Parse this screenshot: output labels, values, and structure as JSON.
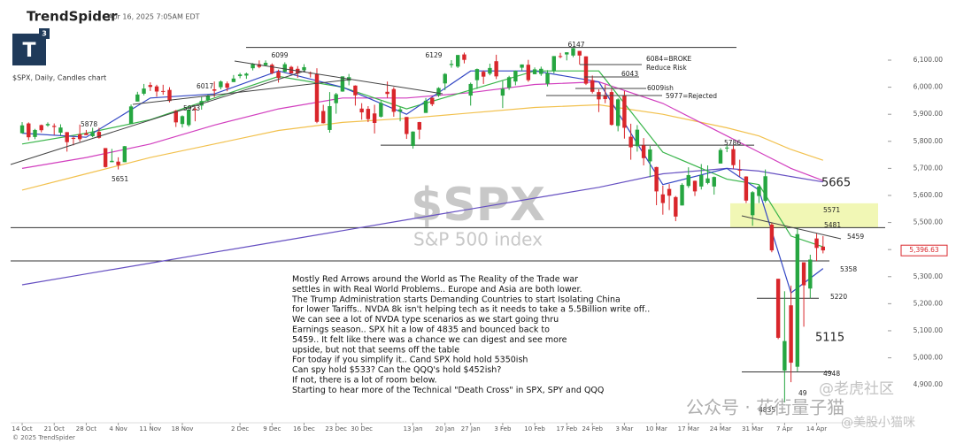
{
  "header": {
    "brand": "TrendSpider",
    "timestamp": "Apr 16, 2025 7:05AM EDT",
    "logo": "T",
    "logo_sup": "3",
    "symbol_line": "$SPX, Daily, Candles chart"
  },
  "footer": "© 2025 TrendSpider",
  "watermarks": [
    "$SPX",
    "S&P 500 index",
    "公众号 · 花街量子猫",
    "@老虎社区",
    "@美股小猫咪"
  ],
  "chart_data": {
    "type": "candlestick",
    "xlim": [
      -1.8,
      134.7
    ],
    "ylim": [
      4760,
      6283
    ],
    "xticks": [
      {
        "value": 0,
        "label": "14 Oct"
      },
      {
        "value": 5,
        "label": "21 Oct"
      },
      {
        "value": 10,
        "label": "28 Oct"
      },
      {
        "value": 15,
        "label": "4 Nov"
      },
      {
        "value": 20,
        "label": "11 Nov"
      },
      {
        "value": 25,
        "label": "18 Nov"
      },
      {
        "value": 34,
        "label": "2 Dec"
      },
      {
        "value": 39,
        "label": "9 Dec"
      },
      {
        "value": 44,
        "label": "16 Dec"
      },
      {
        "value": 49,
        "label": "23 Dec"
      },
      {
        "value": 53,
        "label": "30 Dec"
      },
      {
        "value": 61,
        "label": "13 Jan"
      },
      {
        "value": 66,
        "label": "20 Jan"
      },
      {
        "value": 70,
        "label": "27 Jan"
      },
      {
        "value": 75,
        "label": "3 Feb"
      },
      {
        "value": 80,
        "label": "10 Feb"
      },
      {
        "value": 85,
        "label": "17 Feb"
      },
      {
        "value": 89,
        "label": "24 Feb"
      },
      {
        "value": 94,
        "label": "3 Mar"
      },
      {
        "value": 99,
        "label": "10 Mar"
      },
      {
        "value": 104,
        "label": "17 Mar"
      },
      {
        "value": 109,
        "label": "24 Mar"
      },
      {
        "value": 114,
        "label": "31 Mar"
      },
      {
        "value": 119,
        "label": "7 Apr"
      },
      {
        "value": 124,
        "label": "14 Apr"
      }
    ],
    "yticks": [
      {
        "value": 4900,
        "label": "4,900.00"
      },
      {
        "value": 5000,
        "label": "5,000.00"
      },
      {
        "value": 5100,
        "label": "5,100.00"
      },
      {
        "value": 5200,
        "label": "5,200.00"
      },
      {
        "value": 5300,
        "label": "5,300.00"
      },
      {
        "value": 5400,
        "label": "5,400.00"
      },
      {
        "value": 5500,
        "label": "5,500.00"
      },
      {
        "value": 5600,
        "label": "5,600.00"
      },
      {
        "value": 5700,
        "label": "5,700.00"
      },
      {
        "value": 5800,
        "label": "5,800.00"
      },
      {
        "value": 5900,
        "label": "5,900.00"
      },
      {
        "value": 6000,
        "label": "6,000.00"
      },
      {
        "value": 6100,
        "label": "6,100.00"
      }
    ],
    "up_color": "#26a641",
    "down_color": "#d9262b",
    "candles": {
      "open": [
        5830,
        5866,
        5816,
        5860,
        5859,
        5857,
        5832,
        5834,
        5813,
        5826,
        5830,
        5819,
        5835,
        5775,
        5723,
        5725,
        5723,
        5864,
        5947,
        5976,
        6008,
        6003,
        5986,
        5990,
        5913,
        5864,
        5860,
        5920,
        5932,
        5952,
        5992,
        6000,
        6014,
        6019,
        6041,
        6043,
        6070,
        6085,
        6081,
        6083,
        6057,
        6057,
        6075,
        6068,
        6063,
        6053,
        6048,
        5912,
        5842,
        5941,
        5984,
        6024,
        6006,
        5921,
        5920,
        5903,
        5891,
        5983,
        5993,
        5910,
        5890,
        5783,
        5871,
        5905,
        5961,
        5969,
        6014,
        6082,
        6076,
        6121,
        5969,
        6026,
        6057,
        6050,
        6096,
        5969,
        5998,
        6021,
        6072,
        6083,
        6048,
        6049,
        6013,
        6060,
        6115,
        6121,
        6117,
        6134,
        6114,
        6026,
        5982,
        5970,
        5982,
        5857,
        5968,
        5817,
        5782,
        5785,
        5726,
        5705,
        5604,
        5624,
        5594,
        5563,
        5635,
        5654,
        5633,
        5646,
        5633,
        5718,
        5776,
        5771,
        5695,
        5670,
        5527,
        5598,
        5580,
        5492,
        5292,
        4953,
        5194,
        4967,
        5353,
        5256,
        5441,
        5411
      ],
      "high": [
        5871,
        5870,
        5846,
        5862,
        5870,
        5866,
        5863,
        5834,
        5817,
        5862,
        5842,
        5850,
        5850,
        5775,
        5772,
        5741,
        5783,
        5936,
        5983,
        6012,
        6018,
        6009,
        6009,
        6000,
        5916,
        5896,
        5920,
        5926,
        5964,
        5973,
        6021,
        6025,
        6021,
        6045,
        6053,
        6054,
        6089,
        6099,
        6099,
        6088,
        6065,
        6092,
        6079,
        6078,
        6085,
        6058,
        6070,
        5935,
        5982,
        5979,
        6040,
        6049,
        6007,
        5941,
        5930,
        5935,
        5949,
        6021,
        6000,
        5927,
        5890,
        5837,
        5872,
        5960,
        5962,
        6000,
        6052,
        6100,
        6119,
        6128,
        6017,
        6069,
        6062,
        6087,
        6120,
        6023,
        6042,
        6062,
        6084,
        6101,
        6073,
        6076,
        6063,
        6115,
        6127,
        6129,
        6145,
        6134,
        6114,
        6043,
        5992,
        6009,
        5994,
        5959,
        5986,
        5865,
        5860,
        5812,
        5783,
        5706,
        5636,
        5642,
        5598,
        5645,
        5704,
        5655,
        5716,
        5711,
        5670,
        5775,
        5786,
        5784,
        5732,
        5671,
        5616,
        5639,
        5696,
        5500,
        5292,
        5246,
        5267,
        5481,
        5353,
        5381,
        5459,
        5450
      ],
      "low": [
        5829,
        5804,
        5808,
        5833,
        5854,
        5824,
        5821,
        5762,
        5785,
        5799,
        5823,
        5815,
        5810,
        5703,
        5723,
        5696,
        5723,
        5864,
        5947,
        5970,
        5986,
        5965,
        5972,
        5944,
        5853,
        5851,
        5854,
        5874,
        5917,
        5944,
        5963,
        5992,
        5985,
        6019,
        6033,
        6031,
        6062,
        6070,
        6079,
        6048,
        6017,
        6055,
        6051,
        6035,
        6059,
        6036,
        5867,
        5866,
        5832,
        5902,
        5983,
        6007,
        5932,
        5880,
        5871,
        5829,
        5888,
        5960,
        5891,
        5874,
        5809,
        5773,
        5808,
        5905,
        5930,
        5964,
        5989,
        6072,
        6071,
        6088,
        5932,
        5994,
        6012,
        6044,
        6030,
        5923,
        5990,
        6007,
        6060,
        6020,
        6048,
        6042,
        6003,
        6051,
        6107,
        6099,
        6111,
        6084,
        6008,
        5977,
        5908,
        5941,
        5858,
        5837,
        5810,
        5732,
        5762,
        5711,
        5667,
        5564,
        5529,
        5546,
        5505,
        5563,
        5628,
        5598,
        5622,
        5641,
        5603,
        5718,
        5760,
        5699,
        5670,
        5572,
        5488,
        5572,
        5573,
        5390,
        5069,
        4835,
        4910,
        4950,
        5115,
        5220,
        5358,
        5386
      ],
      "close": [
        5859,
        5815,
        5842,
        5841,
        5864,
        5853,
        5851,
        5797,
        5809,
        5808,
        5823,
        5832,
        5813,
        5705,
        5728,
        5712,
        5782,
        5929,
        5973,
        5995,
        6001,
        5984,
        5985,
        5949,
        5870,
        5893,
        5917,
        5917,
        5949,
        5969,
        5987,
        6021,
        5998,
        6032,
        6047,
        6050,
        6086,
        6075,
        6090,
        6052,
        6034,
        6085,
        6051,
        6051,
        6074,
        6050,
        5872,
        5867,
        5930,
        5974,
        6040,
        6037,
        5970,
        5907,
        5882,
        5868,
        5942,
        5975,
        5909,
        5918,
        5827,
        5836,
        5843,
        5950,
        5937,
        5997,
        6049,
        6086,
        6119,
        6101,
        6012,
        6067,
        6039,
        6071,
        6040,
        5994,
        6037,
        6061,
        6084,
        6026,
        6066,
        6068,
        6052,
        6115,
        6114,
        6129,
        6144,
        6117,
        6013,
        5983,
        5955,
        5956,
        5861,
        5955,
        5850,
        5778,
        5843,
        5738,
        5770,
        5615,
        5572,
        5599,
        5522,
        5639,
        5675,
        5615,
        5675,
        5663,
        5668,
        5768,
        5777,
        5712,
        5693,
        5581,
        5612,
        5633,
        5671,
        5397,
        5074,
        5062,
        4982,
        5457,
        5268,
        5363,
        5406,
        5397
      ]
    },
    "moving_averages": [
      {
        "color": "#f2c14e",
        "x": [
          0,
          10,
          20,
          30,
          40,
          50,
          60,
          70,
          80,
          90,
          100,
          110,
          115,
          120,
          125
        ],
        "values": [
          5620,
          5680,
          5740,
          5790,
          5840,
          5870,
          5885,
          5905,
          5925,
          5935,
          5900,
          5850,
          5820,
          5770,
          5730
        ]
      },
      {
        "color": "#d23fbf",
        "x": [
          0,
          10,
          20,
          30,
          40,
          50,
          60,
          70,
          80,
          90,
          100,
          110,
          115,
          120,
          125
        ],
        "values": [
          5700,
          5740,
          5790,
          5860,
          5920,
          5960,
          5960,
          5980,
          6010,
          6020,
          5940,
          5820,
          5760,
          5700,
          5655
        ]
      },
      {
        "color": "#6650c2",
        "x": [
          0,
          10,
          20,
          30,
          40,
          50,
          60,
          70,
          80,
          90,
          100,
          110,
          115,
          120,
          125
        ],
        "values": [
          5270,
          5310,
          5350,
          5390,
          5430,
          5470,
          5510,
          5550,
          5590,
          5630,
          5680,
          5700,
          5690,
          5670,
          5650
        ]
      },
      {
        "color": "#39b54a",
        "x": [
          0,
          10,
          20,
          30,
          40,
          50,
          60,
          70,
          80,
          90,
          100,
          110,
          115,
          120,
          125
        ],
        "values": [
          5790,
          5830,
          5880,
          5960,
          6040,
          6000,
          5920,
          5990,
          6060,
          6060,
          5760,
          5660,
          5640,
          5450,
          5410
        ]
      },
      {
        "color": "#3347c4",
        "x": [
          0,
          10,
          20,
          30,
          40,
          50,
          60,
          70,
          80,
          90,
          100,
          110,
          115,
          120,
          125
        ],
        "values": [
          5830,
          5815,
          5960,
          5975,
          6060,
          6000,
          5900,
          6060,
          6060,
          6020,
          5640,
          5700,
          5620,
          5240,
          5330
        ]
      }
    ],
    "levels": [
      6147,
      5786,
      5481,
      5358,
      5220,
      4948
    ],
    "zone": [
      5481,
      5571
    ],
    "last_price": {
      "value": 5396.63,
      "label": "5,396.63"
    },
    "annotations": [
      "6147",
      "6099",
      "6129",
      "6084=BROKE",
      "Reduce Risk",
      "6043",
      "6009ish",
      "5977=Rejected",
      "6017",
      "5923",
      "5878",
      "5651",
      "5786",
      "5665",
      "5571",
      "5481",
      "5459",
      "5358",
      "5220",
      "5115",
      "4948",
      "49",
      "4835"
    ],
    "commentary": [
      "Mostly Red Arrows around the World as The Reality of the Trade war",
      "settles in with Real World Problems.. Europe and Asia are both lower.",
      "The Trump Administration starts Demanding Countries to start Isolating China",
      "for lower Tariffs.. NVDA 8k isn't helping tech as it needs to take a 5.5Billion write off..",
      "We can see a lot of NVDA type scenarios as we start going thru",
      "Earnings season.. SPX hit a low of 4835 and bounced back to",
      "5459.. It felt like there was a chance we can digest and see more",
      "upside, but not that seems off the table",
      "For today if you simplify it.. Cand SPX hold hold 5350ish",
      "Can spy hold $533? Can the QQQ's hold $452ish?",
      "If not, there is a lot of room below.",
      "Starting to hear more of the Technical \"Death Cross\" in SPX, SPY and QQQ"
    ]
  }
}
